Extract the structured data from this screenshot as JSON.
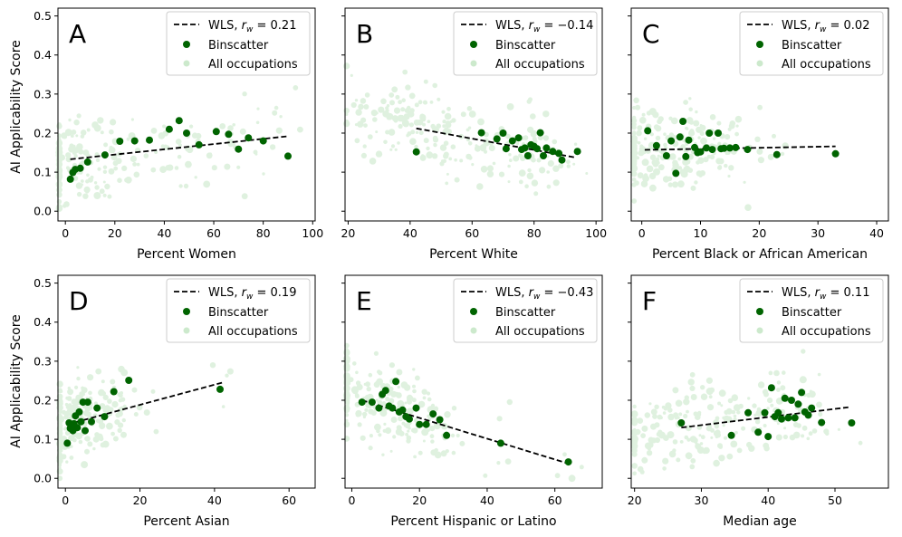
{
  "figure": {
    "y_label": "AI Applicability Score",
    "legend_labels": {
      "wls": "WLS, ",
      "binscatter": "Binscatter",
      "all": "All occupations"
    }
  },
  "colors": {
    "bin": "#006400",
    "scatter": "#8fce8f",
    "line": "#000000"
  },
  "chart_data": [
    {
      "panel_letter": "A",
      "type": "scatter",
      "xlabel": "Percent Women",
      "ylabel": "AI Applicability Score",
      "xlim": [
        -3,
        101
      ],
      "ylim": [
        -0.025,
        0.52
      ],
      "xticks": [
        0,
        20,
        40,
        60,
        80,
        100
      ],
      "xtick_labels": [
        "0",
        "20",
        "40",
        "60",
        "80",
        "100"
      ],
      "yticks": [
        0.0,
        0.1,
        0.2,
        0.3,
        0.4,
        0.5
      ],
      "ytick_labels": [
        "0.0",
        "0.1",
        "0.2",
        "0.3",
        "0.4",
        "0.5"
      ],
      "wls": {
        "r_label": "= 0.21",
        "x": [
          2,
          90
        ],
        "y": [
          0.133,
          0.192
        ]
      },
      "binscatter": {
        "x": [
          2,
          3,
          4,
          6,
          9,
          16,
          22,
          28,
          34,
          42,
          46,
          49,
          54,
          61,
          66,
          70,
          74,
          80,
          90
        ],
        "y": [
          0.082,
          0.099,
          0.107,
          0.11,
          0.126,
          0.144,
          0.179,
          0.18,
          0.182,
          0.21,
          0.232,
          0.2,
          0.17,
          0.204,
          0.197,
          0.159,
          0.188,
          0.18,
          0.141
        ]
      }
    },
    {
      "panel_letter": "B",
      "type": "scatter",
      "xlabel": "Percent White",
      "ylabel": "",
      "xlim": [
        19,
        102
      ],
      "ylim": [
        -0.025,
        0.52
      ],
      "xticks": [
        20,
        40,
        60,
        80,
        100
      ],
      "xtick_labels": [
        "20",
        "40",
        "60",
        "80",
        "100"
      ],
      "yticks": [
        0.0,
        0.1,
        0.2,
        0.3,
        0.4,
        0.5
      ],
      "ytick_labels": [
        "",
        "",
        "",
        "",
        "",
        ""
      ],
      "wls": {
        "r_label": "= −0.14",
        "x": [
          42,
          93
        ],
        "y": [
          0.212,
          0.138
        ]
      },
      "binscatter": {
        "x": [
          42,
          63,
          68,
          70,
          71,
          73,
          75,
          76,
          77,
          78,
          79,
          80,
          81,
          82,
          83,
          84,
          86,
          88,
          89,
          94
        ],
        "y": [
          0.152,
          0.201,
          0.185,
          0.2,
          0.16,
          0.18,
          0.188,
          0.158,
          0.162,
          0.142,
          0.17,
          0.166,
          0.16,
          0.201,
          0.142,
          0.162,
          0.153,
          0.148,
          0.131,
          0.153
        ]
      }
    },
    {
      "panel_letter": "C",
      "type": "scatter",
      "xlabel": "Percent Black or African American",
      "ylabel": "",
      "xlim": [
        -1.8,
        42
      ],
      "ylim": [
        -0.025,
        0.52
      ],
      "xticks": [
        0,
        10,
        20,
        30,
        40
      ],
      "xtick_labels": [
        "0",
        "10",
        "20",
        "30",
        "40"
      ],
      "yticks": [
        0.0,
        0.1,
        0.2,
        0.3,
        0.4,
        0.5
      ],
      "ytick_labels": [
        "",
        "",
        "",
        "",
        "",
        ""
      ],
      "wls": {
        "r_label": "= 0.02",
        "x": [
          0.5,
          33
        ],
        "y": [
          0.157,
          0.166
        ]
      },
      "binscatter": {
        "x": [
          1,
          2.5,
          4.2,
          5,
          5.8,
          6.5,
          7,
          7.5,
          8,
          9,
          9.5,
          10,
          11,
          11.5,
          12,
          13,
          13.5,
          14,
          15,
          16,
          18,
          23,
          33
        ],
        "y": [
          0.206,
          0.168,
          0.142,
          0.18,
          0.097,
          0.19,
          0.23,
          0.14,
          0.182,
          0.163,
          0.15,
          0.152,
          0.162,
          0.2,
          0.158,
          0.2,
          0.16,
          0.161,
          0.162,
          0.163,
          0.158,
          0.145,
          0.147
        ]
      }
    },
    {
      "panel_letter": "D",
      "type": "scatter",
      "xlabel": "Percent Asian",
      "ylabel": "AI Applicability Score",
      "xlim": [
        -2,
        67
      ],
      "ylim": [
        -0.025,
        0.52
      ],
      "xticks": [
        0,
        20,
        40,
        60
      ],
      "xtick_labels": [
        "0",
        "20",
        "40",
        "60"
      ],
      "yticks": [
        0.0,
        0.1,
        0.2,
        0.3,
        0.4,
        0.5
      ],
      "ytick_labels": [
        "0.0",
        "0.1",
        "0.2",
        "0.3",
        "0.4",
        "0.5"
      ],
      "wls": {
        "r_label": "= 0.19",
        "x": [
          0.5,
          42
        ],
        "y": [
          0.138,
          0.245
        ]
      },
      "binscatter": {
        "x": [
          0.5,
          1,
          1.3,
          1.7,
          2,
          2.3,
          2.7,
          3.2,
          3.7,
          4.2,
          4.7,
          5.3,
          6,
          7,
          8.5,
          10.5,
          13,
          17,
          41.5
        ],
        "y": [
          0.09,
          0.142,
          0.128,
          0.135,
          0.122,
          0.14,
          0.16,
          0.13,
          0.17,
          0.145,
          0.195,
          0.122,
          0.195,
          0.145,
          0.18,
          0.158,
          0.222,
          0.251,
          0.228
        ]
      }
    },
    {
      "panel_letter": "E",
      "type": "scatter",
      "xlabel": "Percent Hispanic or Latino",
      "ylabel": "",
      "xlim": [
        -2,
        74
      ],
      "ylim": [
        -0.025,
        0.52
      ],
      "xticks": [
        0,
        20,
        40,
        60
      ],
      "xtick_labels": [
        "0",
        "20",
        "40",
        "60"
      ],
      "yticks": [
        0.0,
        0.1,
        0.2,
        0.3,
        0.4,
        0.5
      ],
      "ytick_labels": [
        "",
        "",
        "",
        "",
        "",
        ""
      ],
      "wls": {
        "r_label": "= −0.43",
        "x": [
          3,
          65
        ],
        "y": [
          0.2,
          0.035
        ]
      },
      "binscatter": {
        "x": [
          3,
          6,
          8,
          9,
          10,
          11,
          12,
          13,
          14,
          15,
          16,
          17,
          19,
          20,
          22,
          24,
          26,
          28,
          44,
          64
        ],
        "y": [
          0.195,
          0.195,
          0.18,
          0.215,
          0.225,
          0.185,
          0.18,
          0.248,
          0.17,
          0.175,
          0.158,
          0.152,
          0.18,
          0.138,
          0.138,
          0.165,
          0.15,
          0.11,
          0.09,
          0.042
        ]
      }
    },
    {
      "panel_letter": "F",
      "type": "scatter",
      "xlabel": "Median age",
      "ylabel": "",
      "xlim": [
        19.5,
        58
      ],
      "ylim": [
        -0.025,
        0.52
      ],
      "xticks": [
        20,
        30,
        40,
        50
      ],
      "xtick_labels": [
        "20",
        "30",
        "40",
        "50"
      ],
      "yticks": [
        0.0,
        0.1,
        0.2,
        0.3,
        0.4,
        0.5
      ],
      "ytick_labels": [
        "",
        "",
        "",
        "",
        "",
        ""
      ],
      "wls": {
        "r_label": "= 0.11",
        "x": [
          27,
          52
        ],
        "y": [
          0.13,
          0.182
        ]
      },
      "binscatter": {
        "x": [
          27,
          34.5,
          37,
          38.5,
          39.5,
          40,
          40.5,
          41,
          41.5,
          42,
          42.5,
          43,
          43.5,
          44,
          44.5,
          45,
          45.5,
          46,
          46.5,
          48,
          52.5
        ],
        "y": [
          0.142,
          0.11,
          0.168,
          0.118,
          0.168,
          0.107,
          0.232,
          0.158,
          0.168,
          0.152,
          0.205,
          0.155,
          0.2,
          0.155,
          0.19,
          0.22,
          0.17,
          0.162,
          0.18,
          0.143,
          0.142
        ]
      }
    }
  ]
}
